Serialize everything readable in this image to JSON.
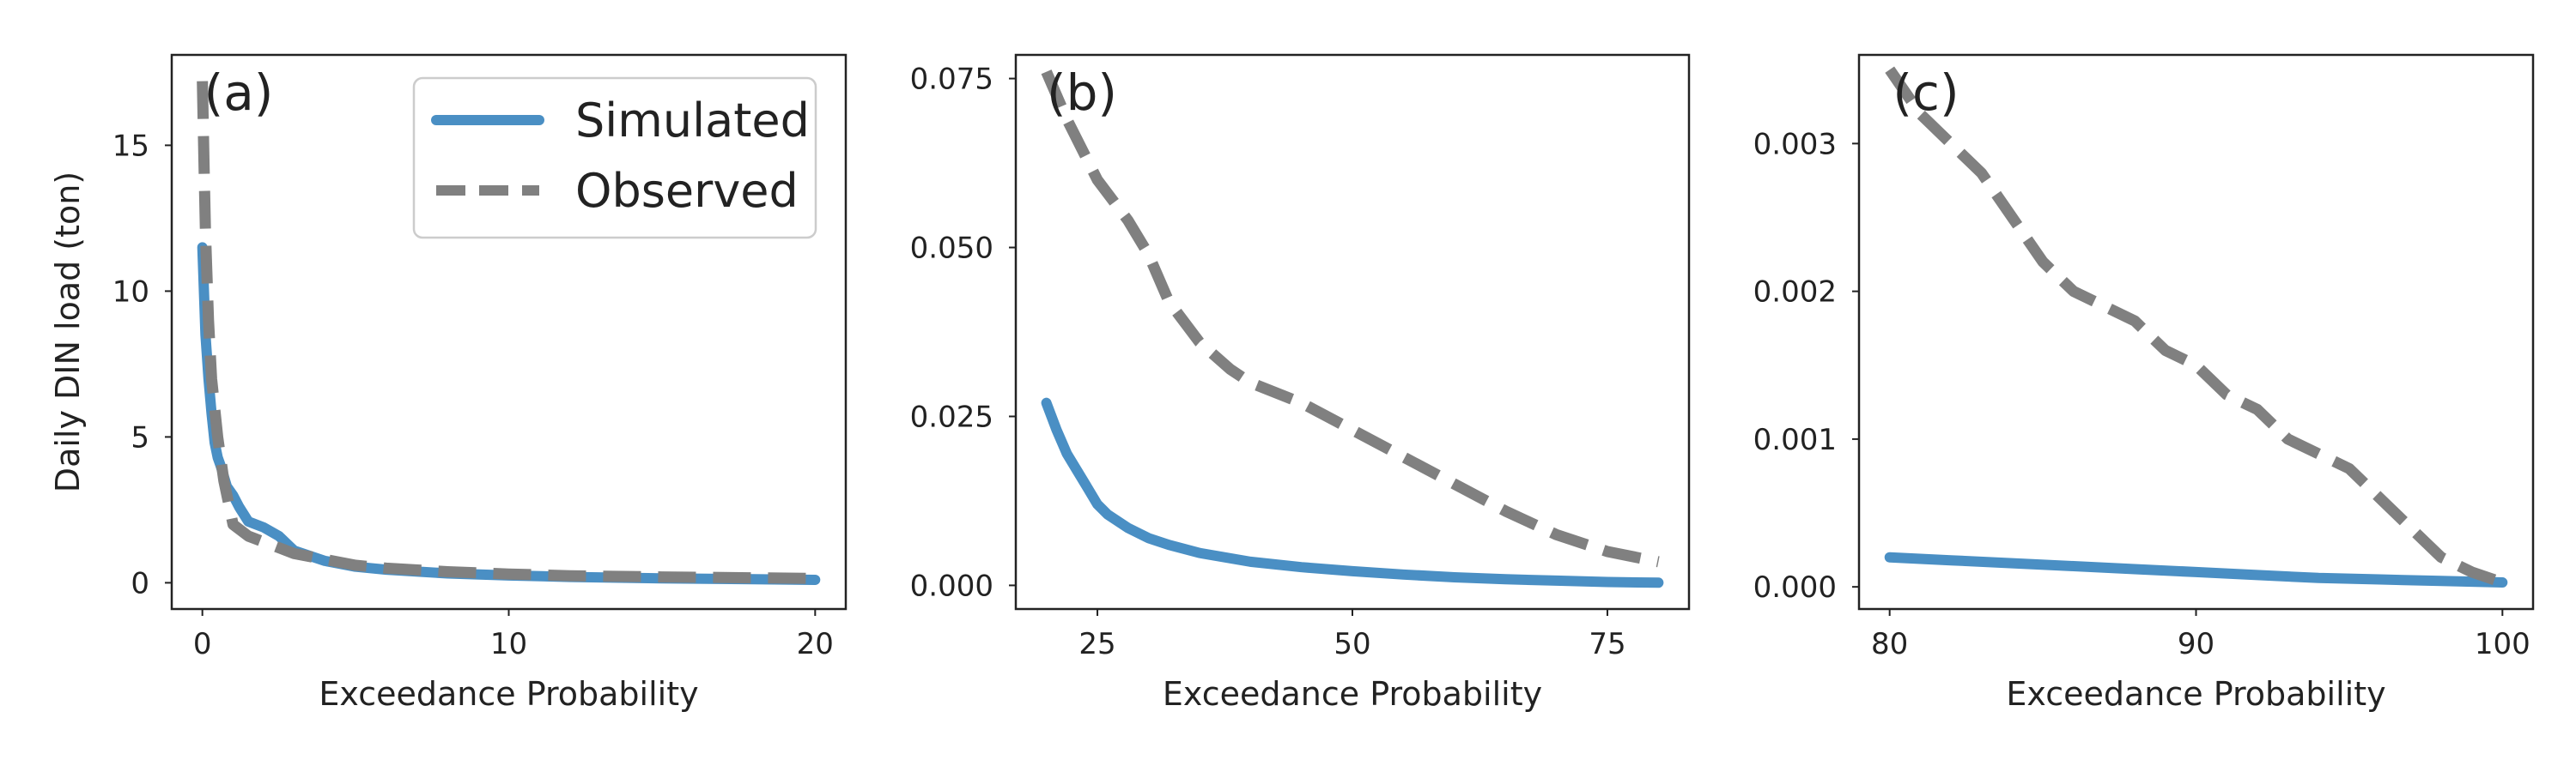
{
  "colors": {
    "simulated": "#4a8fc4",
    "observed": "#808080",
    "frame": "#222222",
    "legend_border": "#cccccc"
  },
  "legend": {
    "placement": "top-right",
    "panel": "a",
    "entries": [
      {
        "label": "Simulated",
        "style": "solid",
        "series": "simulated"
      },
      {
        "label": "Observed",
        "style": "dashed",
        "series": "observed"
      }
    ]
  },
  "chart_data": [
    {
      "id": "a",
      "tag": "(a)",
      "type": "line",
      "xlabel": "Exceedance Probability",
      "ylabel": "Daily DIN load (ton)",
      "xlim": [
        -1,
        21
      ],
      "ylim": [
        -0.9,
        18.1
      ],
      "xticks": [
        0,
        10,
        20
      ],
      "xtick_labels": [
        "0",
        "10",
        "20"
      ],
      "yticks": [
        0,
        5,
        10,
        15
      ],
      "ytick_labels": [
        "0",
        "5",
        "10",
        "15"
      ],
      "grid": false,
      "series": [
        {
          "name": "Simulated",
          "key": "simulated",
          "x": [
            0,
            0.05,
            0.1,
            0.2,
            0.3,
            0.4,
            0.5,
            0.6,
            0.8,
            1.0,
            1.2,
            1.5,
            2,
            2.5,
            3,
            4,
            5,
            6,
            8,
            10,
            12,
            15,
            18,
            20
          ],
          "y": [
            11.5,
            10.0,
            8.5,
            7.0,
            5.8,
            4.8,
            4.3,
            4.0,
            3.3,
            3.0,
            2.6,
            2.1,
            1.9,
            1.6,
            1.1,
            0.75,
            0.55,
            0.45,
            0.32,
            0.25,
            0.2,
            0.15,
            0.12,
            0.1
          ]
        },
        {
          "name": "Observed",
          "key": "observed",
          "x": [
            0,
            0.05,
            0.1,
            0.2,
            0.3,
            0.5,
            0.7,
            1.0,
            1.5,
            2.0,
            2.5,
            3,
            4,
            5,
            6,
            8,
            10,
            12,
            15,
            18,
            20
          ],
          "y": [
            17.2,
            14.5,
            12.0,
            9.0,
            7.0,
            5.0,
            3.5,
            2.0,
            1.6,
            1.4,
            1.2,
            1.0,
            0.8,
            0.6,
            0.5,
            0.38,
            0.3,
            0.24,
            0.2,
            0.17,
            0.15
          ]
        }
      ]
    },
    {
      "id": "b",
      "tag": "(b)",
      "type": "line",
      "xlabel": "Exceedance Probability",
      "ylabel": "",
      "xlim": [
        17,
        83
      ],
      "ylim": [
        -0.0035,
        0.0785
      ],
      "xticks": [
        25,
        50,
        75
      ],
      "xtick_labels": [
        "25",
        "50",
        "75"
      ],
      "yticks": [
        0,
        0.025,
        0.05,
        0.075
      ],
      "ytick_labels": [
        "0.000",
        "0.025",
        "0.050",
        "0.075"
      ],
      "grid": false,
      "series": [
        {
          "name": "Simulated",
          "key": "simulated",
          "x": [
            20,
            21,
            22,
            23,
            24,
            25,
            26,
            28,
            30,
            32,
            35,
            40,
            45,
            50,
            55,
            60,
            65,
            70,
            75,
            80
          ],
          "y": [
            0.027,
            0.023,
            0.0195,
            0.017,
            0.0145,
            0.012,
            0.0105,
            0.0085,
            0.007,
            0.006,
            0.0048,
            0.0035,
            0.0027,
            0.0021,
            0.0016,
            0.0012,
            0.0009,
            0.0007,
            0.0005,
            0.0004
          ]
        },
        {
          "name": "Observed",
          "key": "observed",
          "x": [
            20,
            22,
            25,
            28,
            30,
            32,
            35,
            38,
            40,
            45,
            50,
            55,
            60,
            65,
            70,
            75,
            80
          ],
          "y": [
            0.076,
            0.069,
            0.06,
            0.054,
            0.049,
            0.042,
            0.036,
            0.032,
            0.03,
            0.027,
            0.023,
            0.019,
            0.015,
            0.011,
            0.0075,
            0.005,
            0.0035
          ]
        }
      ]
    },
    {
      "id": "c",
      "tag": "(c)",
      "type": "line",
      "xlabel": "Exceedance Probability",
      "ylabel": "",
      "xlim": [
        79,
        101
      ],
      "ylim": [
        -0.00015,
        0.0036
      ],
      "xticks": [
        80,
        90,
        100
      ],
      "xtick_labels": [
        "80",
        "90",
        "100"
      ],
      "yticks": [
        0,
        0.001,
        0.002,
        0.003
      ],
      "ytick_labels": [
        "0.000",
        "0.001",
        "0.002",
        "0.003"
      ],
      "grid": false,
      "series": [
        {
          "name": "Simulated",
          "key": "simulated",
          "x": [
            80,
            82,
            84,
            86,
            88,
            90,
            92,
            94,
            96,
            98,
            100
          ],
          "y": [
            0.0002,
            0.00018,
            0.00016,
            0.00014,
            0.00012,
            0.0001,
            8e-05,
            6e-05,
            5e-05,
            4e-05,
            3e-05
          ]
        },
        {
          "name": "Observed",
          "key": "observed",
          "x": [
            80,
            81,
            82,
            83,
            84,
            85,
            86,
            87,
            88,
            89,
            90,
            91,
            92,
            93,
            94,
            95,
            96,
            97,
            98,
            99,
            100
          ],
          "y": [
            0.0035,
            0.0032,
            0.003,
            0.0028,
            0.0025,
            0.0022,
            0.002,
            0.0019,
            0.0018,
            0.0016,
            0.0015,
            0.0013,
            0.0012,
            0.001,
            0.0009,
            0.0008,
            0.0006,
            0.0004,
            0.0002,
            0.0001,
            3e-05
          ]
        }
      ]
    }
  ]
}
